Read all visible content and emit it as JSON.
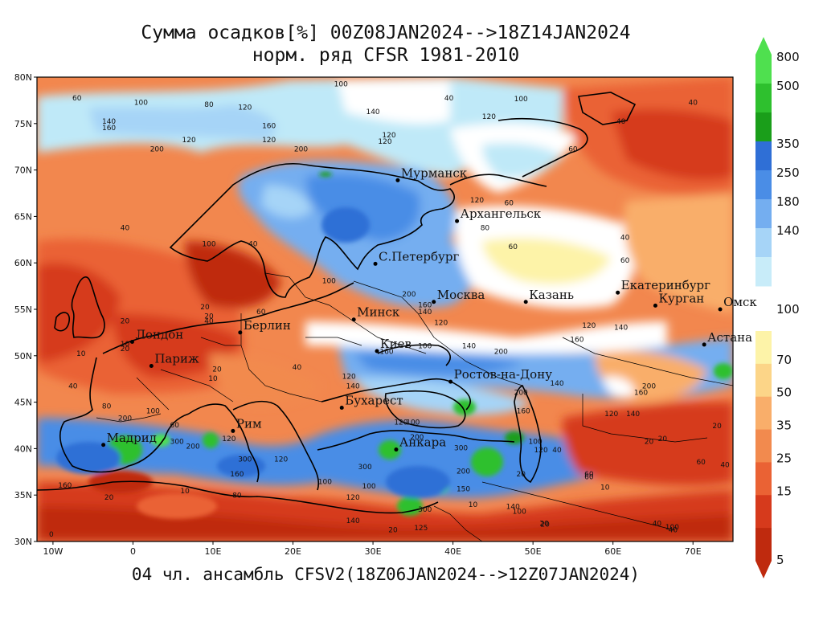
{
  "title_line1": "Сумма осадков[%] 00Z08JAN2024-->18Z14JAN2024",
  "title_line2": "норм. ряд CFSR 1981-2010",
  "footer": "04 чл. ансамбль CFSV2(18Z06JAN2024-->12Z07JAN2024)",
  "lat_labels": [
    "80N",
    "75N",
    "70N",
    "65N",
    "60N",
    "55N",
    "50N",
    "45N",
    "40N",
    "35N",
    "30N"
  ],
  "lon_labels": [
    "10W",
    "0",
    "10E",
    "20E",
    "30E",
    "40E",
    "50E",
    "60E",
    "70E"
  ],
  "cities": [
    {
      "name": "Мурманск",
      "lon": 33.1,
      "lat": 68.9
    },
    {
      "name": "Архангельск",
      "lon": 40.5,
      "lat": 64.5
    },
    {
      "name": "С.Петербург",
      "lon": 30.3,
      "lat": 59.9
    },
    {
      "name": "Москва",
      "lon": 37.6,
      "lat": 55.8
    },
    {
      "name": "Казань",
      "lon": 49.1,
      "lat": 55.8
    },
    {
      "name": "Екатеринбург",
      "lon": 60.6,
      "lat": 56.8
    },
    {
      "name": "Курган",
      "lon": 65.3,
      "lat": 55.4
    },
    {
      "name": "Омск",
      "lon": 73.4,
      "lat": 55.0
    },
    {
      "name": "Астана",
      "lon": 71.4,
      "lat": 51.2
    },
    {
      "name": "Минск",
      "lon": 27.6,
      "lat": 53.9
    },
    {
      "name": "Киев",
      "lon": 30.5,
      "lat": 50.5
    },
    {
      "name": "Берлин",
      "lon": 13.4,
      "lat": 52.5
    },
    {
      "name": "Лондон",
      "lon": -0.1,
      "lat": 51.5
    },
    {
      "name": "Париж",
      "lon": 2.3,
      "lat": 48.9
    },
    {
      "name": "Ростов-на-Дону",
      "lon": 39.7,
      "lat": 47.2
    },
    {
      "name": "Бухарест",
      "lon": 26.1,
      "lat": 44.4
    },
    {
      "name": "Рим",
      "lon": 12.5,
      "lat": 41.9
    },
    {
      "name": "Мадрид",
      "lon": -3.7,
      "lat": 40.4
    },
    {
      "name": "Анкара",
      "lon": 32.9,
      "lat": 39.9
    }
  ],
  "colorbar_upper": [
    {
      "label": "800",
      "color": "#4fe04f"
    },
    {
      "label": "500",
      "color": "#2ec02e"
    },
    {
      "label": "",
      "color": "#1a9e1a"
    },
    {
      "label": "350",
      "color": "#2f6fd6"
    },
    {
      "label": "250",
      "color": "#4a8de6"
    },
    {
      "label": "180",
      "color": "#74aef0"
    },
    {
      "label": "140",
      "color": "#a6d4f7"
    },
    {
      "label": "",
      "color": "#c8ecf9"
    }
  ],
  "colorbar_upper_bottom_label": "100",
  "colorbar_lower": [
    {
      "label": "70",
      "color": "#fdf3a8"
    },
    {
      "label": "50",
      "color": "#fcd588"
    },
    {
      "label": "35",
      "color": "#f9ae6a"
    },
    {
      "label": "25",
      "color": "#f28a4e"
    },
    {
      "label": "15",
      "color": "#ea6234"
    },
    {
      "label": "",
      "color": "#d63a1c"
    },
    {
      "label": "5",
      "color": "#bf2a0e"
    }
  ],
  "contour_labels": [
    {
      "t": "60",
      "lon": -7,
      "lat": 77.5
    },
    {
      "t": "100",
      "lon": 1,
      "lat": 77
    },
    {
      "t": "80",
      "lon": 9.5,
      "lat": 76.8
    },
    {
      "t": "120",
      "lon": 14,
      "lat": 76.5
    },
    {
      "t": "140",
      "lon": 30,
      "lat": 76
    },
    {
      "t": "160",
      "lon": 17,
      "lat": 74.5
    },
    {
      "t": "140",
      "lon": -3,
      "lat": 75
    },
    {
      "t": "160",
      "lon": -3,
      "lat": 74.3
    },
    {
      "t": "120",
      "lon": 7,
      "lat": 73
    },
    {
      "t": "120",
      "lon": 17,
      "lat": 73
    },
    {
      "t": "200",
      "lon": 3,
      "lat": 72
    },
    {
      "t": "200",
      "lon": 21,
      "lat": 72
    },
    {
      "t": "120",
      "lon": 32,
      "lat": 73.5
    },
    {
      "t": "120",
      "lon": 31.5,
      "lat": 72.8
    },
    {
      "t": "100",
      "lon": 26,
      "lat": 79
    },
    {
      "t": "40",
      "lon": 39.5,
      "lat": 77.5
    },
    {
      "t": "100",
      "lon": 48.5,
      "lat": 77.4
    },
    {
      "t": "120",
      "lon": 44.5,
      "lat": 75.5
    },
    {
      "t": "40",
      "lon": 70,
      "lat": 77
    },
    {
      "t": "40",
      "lon": 61,
      "lat": 75
    },
    {
      "t": "60",
      "lon": 55,
      "lat": 72
    },
    {
      "t": "120",
      "lon": 43,
      "lat": 66.5
    },
    {
      "t": "60",
      "lon": 47,
      "lat": 66.2
    },
    {
      "t": "80",
      "lon": 44,
      "lat": 63.5
    },
    {
      "t": "40",
      "lon": 61.5,
      "lat": 62.5
    },
    {
      "t": "60",
      "lon": 47.5,
      "lat": 61.5
    },
    {
      "t": "60",
      "lon": 61.5,
      "lat": 60
    },
    {
      "t": "40",
      "lon": -1,
      "lat": 63.5
    },
    {
      "t": "100",
      "lon": 9.5,
      "lat": 61.8
    },
    {
      "t": "40",
      "lon": 15,
      "lat": 61.8
    },
    {
      "t": "100",
      "lon": 24.5,
      "lat": 57.8
    },
    {
      "t": "200",
      "lon": 34.5,
      "lat": 56.4
    },
    {
      "t": "160",
      "lon": 36.5,
      "lat": 55.2
    },
    {
      "t": "140",
      "lon": 36.5,
      "lat": 54.5
    },
    {
      "t": "120",
      "lon": 38.5,
      "lat": 53.3
    },
    {
      "t": "120",
      "lon": 57,
      "lat": 53
    },
    {
      "t": "140",
      "lon": 61,
      "lat": 52.8
    },
    {
      "t": "160",
      "lon": 55.5,
      "lat": 51.5
    },
    {
      "t": "200",
      "lon": 46,
      "lat": 50.2
    },
    {
      "t": "140",
      "lon": 42,
      "lat": 50.8
    },
    {
      "t": "100",
      "lon": 36.5,
      "lat": 50.8
    },
    {
      "t": "160",
      "lon": 31.7,
      "lat": 50.2
    },
    {
      "t": "20",
      "lon": 9,
      "lat": 55
    },
    {
      "t": "20",
      "lon": 9.5,
      "lat": 54
    },
    {
      "t": "60",
      "lon": 16,
      "lat": 54.5
    },
    {
      "t": "40",
      "lon": 9.5,
      "lat": 53.5
    },
    {
      "t": "20",
      "lon": -1,
      "lat": 53.5
    },
    {
      "t": "10",
      "lon": -1,
      "lat": 51
    },
    {
      "t": "20",
      "lon": -1,
      "lat": 50.5
    },
    {
      "t": "10",
      "lon": -6.5,
      "lat": 50
    },
    {
      "t": "40",
      "lon": -7.5,
      "lat": 46.5
    },
    {
      "t": "10",
      "lon": 10,
      "lat": 47.3
    },
    {
      "t": "20",
      "lon": 10.5,
      "lat": 48.3
    },
    {
      "t": "40",
      "lon": 20.5,
      "lat": 48.5
    },
    {
      "t": "120",
      "lon": 27,
      "lat": 47.5
    },
    {
      "t": "140",
      "lon": 27.5,
      "lat": 46.5
    },
    {
      "t": "200",
      "lon": 48.5,
      "lat": 45.8
    },
    {
      "t": "140",
      "lon": 53,
      "lat": 46.8
    },
    {
      "t": "200",
      "lon": 64.5,
      "lat": 46.5
    },
    {
      "t": "160",
      "lon": 63.5,
      "lat": 45.8
    },
    {
      "t": "120",
      "lon": 59.8,
      "lat": 43.5
    },
    {
      "t": "140",
      "lon": 62.5,
      "lat": 43.5
    },
    {
      "t": "20",
      "lon": 66.2,
      "lat": 40.8
    },
    {
      "t": "60",
      "lon": 71,
      "lat": 38.3
    },
    {
      "t": "40",
      "lon": 74,
      "lat": 38
    },
    {
      "t": "10",
      "lon": 59,
      "lat": 35.6
    },
    {
      "t": "60",
      "lon": 57,
      "lat": 36.7
    },
    {
      "t": "20",
      "lon": 51.4,
      "lat": 31.7
    },
    {
      "t": "100",
      "lon": 67.4,
      "lat": 31.3
    },
    {
      "t": "40",
      "lon": 65.5,
      "lat": 31.7
    },
    {
      "t": "80",
      "lon": -3.3,
      "lat": 44.3
    },
    {
      "t": "200",
      "lon": -1,
      "lat": 43
    },
    {
      "t": "100",
      "lon": 2.5,
      "lat": 43.8
    },
    {
      "t": "60",
      "lon": 5.2,
      "lat": 42.3
    },
    {
      "t": "300",
      "lon": 5.5,
      "lat": 40.5
    },
    {
      "t": "200",
      "lon": 7.5,
      "lat": 40
    },
    {
      "t": "120",
      "lon": 12,
      "lat": 40.8
    },
    {
      "t": "300",
      "lon": 14,
      "lat": 38.6
    },
    {
      "t": "160",
      "lon": 13,
      "lat": 37
    },
    {
      "t": "120",
      "lon": 18.5,
      "lat": 38.6
    },
    {
      "t": "80",
      "lon": 13,
      "lat": 34.7
    },
    {
      "t": "100",
      "lon": 24,
      "lat": 36.2
    },
    {
      "t": "300",
      "lon": 29,
      "lat": 37.8
    },
    {
      "t": "120",
      "lon": 27.5,
      "lat": 34.5
    },
    {
      "t": "140",
      "lon": 27.5,
      "lat": 32
    },
    {
      "t": "20",
      "lon": 32.5,
      "lat": 31
    },
    {
      "t": "160",
      "lon": -8.5,
      "lat": 35.8
    },
    {
      "t": "20",
      "lon": -3,
      "lat": 34.5
    },
    {
      "t": "10",
      "lon": 6.5,
      "lat": 35.2
    },
    {
      "t": "0",
      "lon": -10.2,
      "lat": 30.5
    },
    {
      "t": "300",
      "lon": 41,
      "lat": 39.8
    },
    {
      "t": "200",
      "lon": 41.3,
      "lat": 37.3
    },
    {
      "t": "150",
      "lon": 41.3,
      "lat": 35.4
    },
    {
      "t": "10",
      "lon": 42.5,
      "lat": 33.7
    },
    {
      "t": "140",
      "lon": 47.5,
      "lat": 33.5
    },
    {
      "t": "100",
      "lon": 48.3,
      "lat": 33
    },
    {
      "t": "300",
      "lon": 36.5,
      "lat": 33.2
    },
    {
      "t": "125",
      "lon": 36,
      "lat": 31.2
    },
    {
      "t": "100",
      "lon": 50.3,
      "lat": 40.5
    },
    {
      "t": "120",
      "lon": 51,
      "lat": 39.6
    },
    {
      "t": "40",
      "lon": 53,
      "lat": 39.6
    },
    {
      "t": "60",
      "lon": 57,
      "lat": 37
    },
    {
      "t": "20",
      "lon": 48.5,
      "lat": 37
    },
    {
      "t": "20",
      "lon": 73,
      "lat": 42.2
    },
    {
      "t": "20",
      "lon": 64.5,
      "lat": 40.5
    },
    {
      "t": "40",
      "lon": 67.5,
      "lat": 31
    },
    {
      "t": "20",
      "lon": 51.5,
      "lat": 31.6
    },
    {
      "t": "160",
      "lon": 48.8,
      "lat": 43.8
    },
    {
      "t": "120",
      "lon": 33.5,
      "lat": 42.6
    },
    {
      "t": "100",
      "lon": 35,
      "lat": 42.6
    },
    {
      "t": "200",
      "lon": 35.5,
      "lat": 41
    },
    {
      "t": "100",
      "lon": 29.5,
      "lat": 35.7
    }
  ]
}
